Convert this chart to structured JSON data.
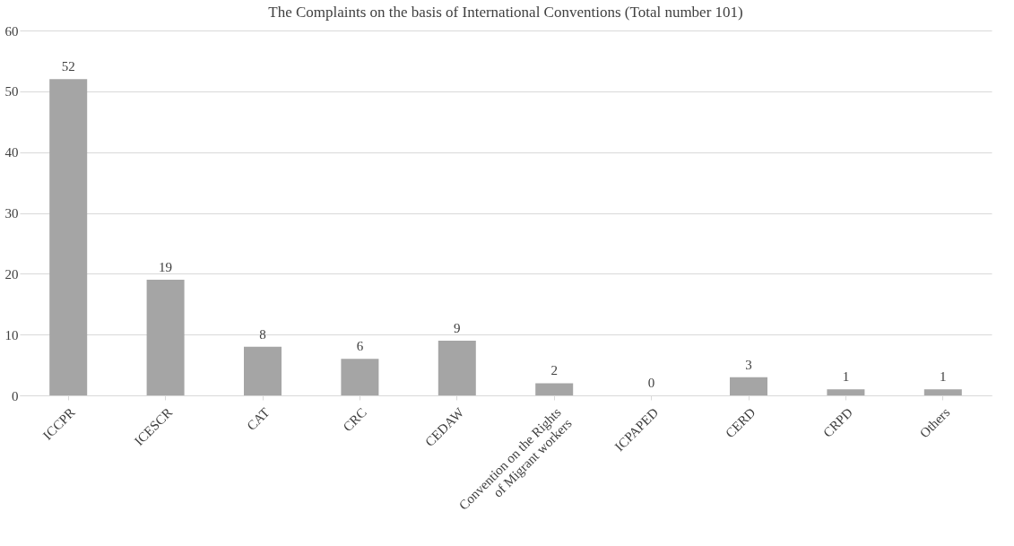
{
  "chart_data": {
    "type": "bar",
    "title": "The Complaints on the basis of International Conventions (Total number 101)",
    "categories": [
      "ICCPR",
      "ICESCR",
      "CAT",
      "CRC",
      "CEDAW",
      "Convention on the Rights of Migrant workers",
      "ICPAPED",
      "CERD",
      "CRPD",
      "Others"
    ],
    "values": [
      52,
      19,
      8,
      6,
      9,
      2,
      0,
      3,
      1,
      1
    ],
    "color": "#a5a5a5",
    "ylim": [
      0,
      60
    ],
    "yticks": [
      0,
      10,
      20,
      30,
      40,
      50,
      60
    ],
    "grid": "y",
    "data_labels": true
  }
}
